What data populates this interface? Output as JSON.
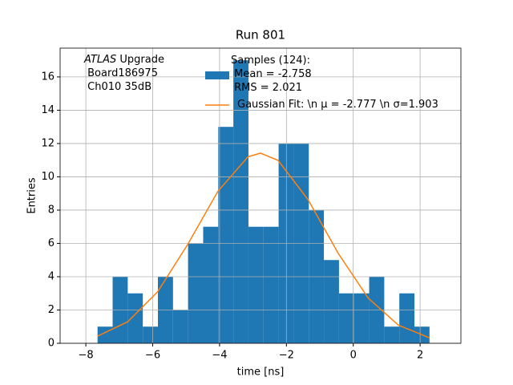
{
  "chart_data": {
    "type": "histogram",
    "title": "Run 801",
    "xlabel": "time [ns]",
    "ylabel": "Entries",
    "annotation": [
      "ATLAS",
      " Upgrade",
      " Board186975",
      " Ch010 35dB"
    ],
    "bins": [
      -7.65,
      -7.199,
      -6.747,
      -6.296,
      -5.844,
      -5.393,
      -4.942,
      -4.49,
      -4.039,
      -3.587,
      -3.136,
      -2.684,
      -2.233,
      -1.782,
      -1.33,
      -0.879,
      -0.427,
      0.024,
      0.476,
      0.927,
      1.378,
      1.83,
      2.281
    ],
    "series": [
      {
        "name": "Samples (124):\n Mean = -2.758\n RMS = 2.021",
        "color": "#1f77b4",
        "values": [
          1,
          4,
          3,
          1,
          4,
          2,
          6,
          7,
          13,
          17,
          7,
          7,
          12,
          12,
          8,
          5,
          3,
          3,
          4,
          1,
          3,
          1
        ]
      },
      {
        "name": "Gaussian Fit: \\n μ = -2.777 \\n σ=1.903",
        "color": "#ff7f0e",
        "x": [
          -7.65,
          -6.75,
          -5.85,
          -4.95,
          -4.05,
          -3.15,
          -2.78,
          -2.25,
          -1.35,
          -0.45,
          0.45,
          1.35,
          2.28
        ],
        "values": [
          0.43,
          1.29,
          3.1,
          5.95,
          9.13,
          11.2,
          11.42,
          10.99,
          8.62,
          5.4,
          2.71,
          1.09,
          0.33
        ]
      }
    ],
    "xlim": [
      -8.77,
      3.22
    ],
    "ylim": [
      0,
      17.73
    ],
    "xticks": [
      {
        "value": -8,
        "label": "−8"
      },
      {
        "value": -6,
        "label": "−6"
      },
      {
        "value": -4,
        "label": "−4"
      },
      {
        "value": -2,
        "label": "−2"
      },
      0,
      2
    ],
    "yticks": [
      0,
      2,
      4,
      6,
      8,
      10,
      12,
      14,
      16
    ],
    "grid": true
  }
}
